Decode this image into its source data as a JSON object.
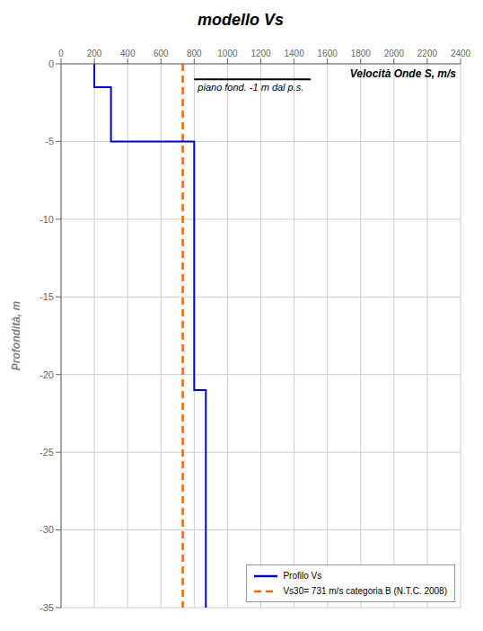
{
  "chart_data": {
    "type": "line",
    "title": "modello Vs",
    "ylabel": "Profondità, m",
    "xlim": [
      0,
      2400
    ],
    "ylim": [
      -35,
      0
    ],
    "xticks": [
      0,
      200,
      400,
      600,
      800,
      1000,
      1200,
      1400,
      1600,
      1800,
      2000,
      2200,
      2400
    ],
    "yticks": [
      0,
      -5,
      -10,
      -15,
      -20,
      -25,
      -30,
      -35
    ],
    "grid": true,
    "legend": "lower right",
    "series": [
      {
        "name": "Profilo Vs",
        "color": "#0000CC",
        "line_style": "solid",
        "x": [
          200,
          200,
          300,
          300,
          800,
          800,
          870,
          870
        ],
        "values": [
          0,
          -1.5,
          -1.5,
          -5.0,
          -5.0,
          -21.0,
          -21.0,
          -35.0
        ]
      }
    ],
    "vs30": {
      "name": "Vs30= 731 m/s  categoria B (N.T.C. 2008)",
      "value": 731,
      "color": "#FF6600",
      "line_style": "dashed"
    },
    "piano_fond": {
      "label": "piano fond. -1 m dal p.s.",
      "x": [
        800,
        1500
      ],
      "value": -1.0,
      "color": "#000000"
    },
    "annotations": [
      "Velocità Onde S, m/s"
    ]
  }
}
